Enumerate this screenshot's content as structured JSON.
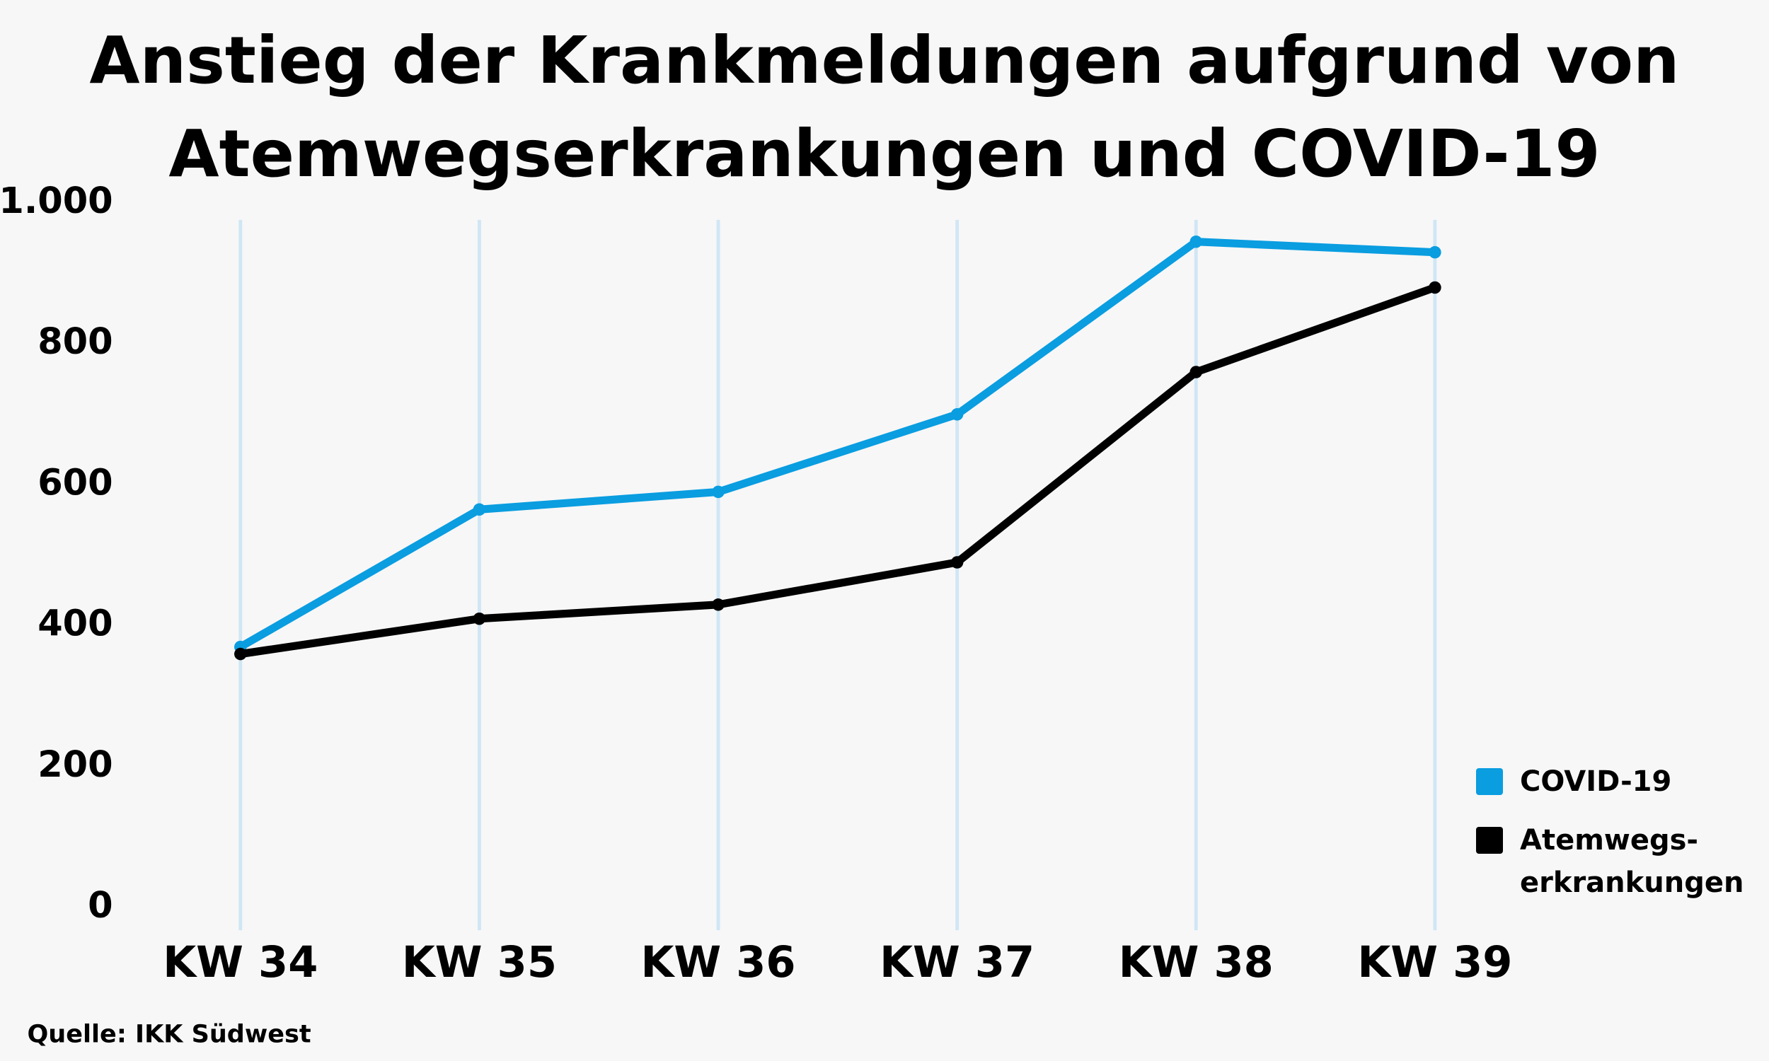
{
  "chart_data": {
    "type": "line",
    "title": "Anstieg der Krankmeldungen aufgrund von\nAtemwegserkrankungen und COVID-19",
    "categories": [
      "KW 34",
      "KW 35",
      "KW 36",
      "KW 37",
      "KW 38",
      "KW 39"
    ],
    "series": [
      {
        "name": "COVID-19",
        "color": "#0a9de0",
        "values": [
          370,
          565,
          590,
          700,
          945,
          930
        ]
      },
      {
        "name": "Atemwegs-\nerkrankungen",
        "color": "#000000",
        "values": [
          360,
          410,
          430,
          490,
          760,
          880
        ]
      }
    ],
    "ylim": [
      0,
      1000
    ],
    "yticks": [
      0,
      200,
      400,
      600,
      800,
      {
        "value": 1000,
        "label": "1.000"
      }
    ],
    "grid": "x",
    "legend": "right",
    "source": "Quelle: IKK Südwest"
  }
}
